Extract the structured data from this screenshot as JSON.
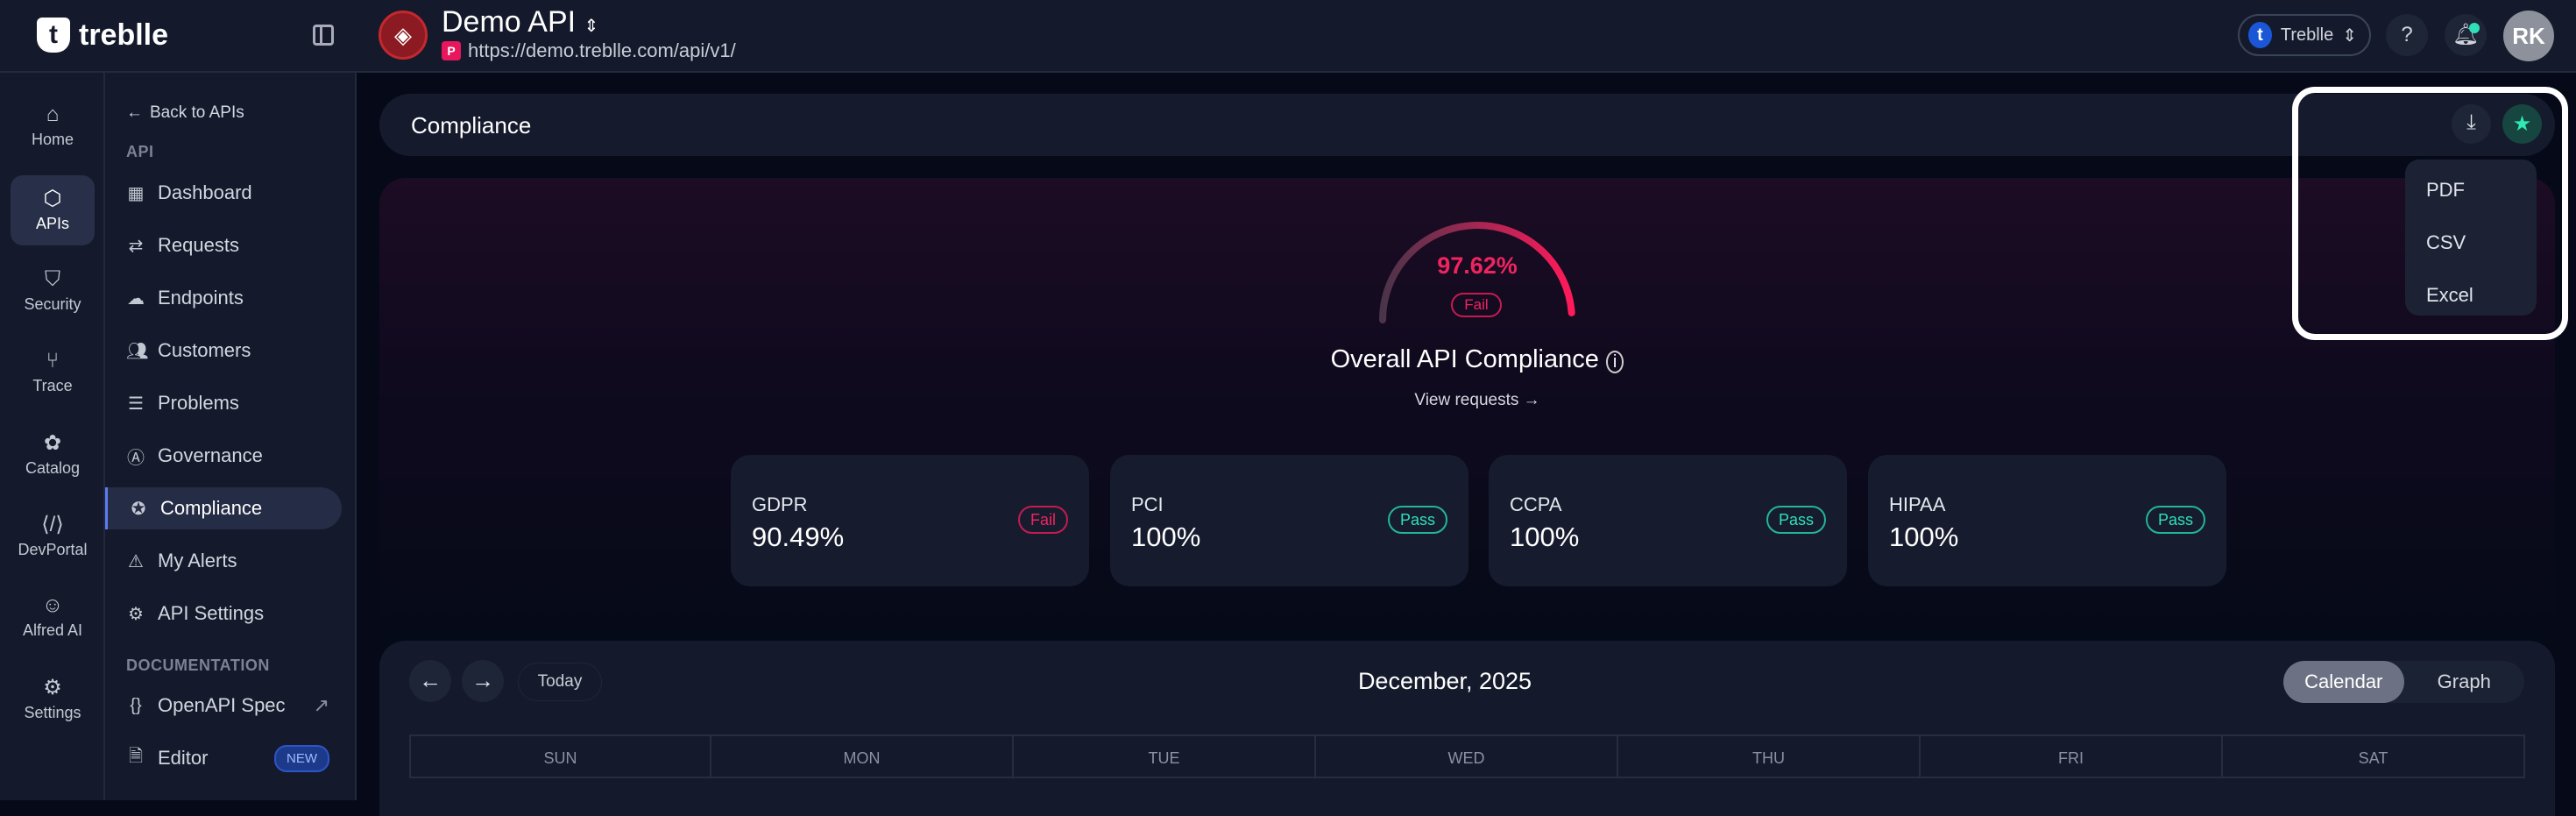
{
  "brand": {
    "name": "treblle"
  },
  "api": {
    "name": "Demo API",
    "url": "https://demo.treblle.com/api/v1/",
    "badge": "P"
  },
  "topbar": {
    "org": "Treblle",
    "help": "?",
    "avatar": "RK"
  },
  "rail": [
    {
      "label": "Home",
      "icon": "home-icon"
    },
    {
      "label": "APIs",
      "icon": "cube-icon"
    },
    {
      "label": "Security",
      "icon": "shield-icon"
    },
    {
      "label": "Trace",
      "icon": "git-icon"
    },
    {
      "label": "Catalog",
      "icon": "catalog-icon"
    },
    {
      "label": "DevPortal",
      "icon": "code-icon"
    },
    {
      "label": "Alfred AI",
      "icon": "robot-icon"
    },
    {
      "label": "Settings",
      "icon": "gear-icon"
    }
  ],
  "sidebar": {
    "back": "Back to APIs",
    "api_section": "API",
    "doc_section": "DOCUMENTATION",
    "items": [
      {
        "label": "Dashboard"
      },
      {
        "label": "Requests"
      },
      {
        "label": "Endpoints"
      },
      {
        "label": "Customers"
      },
      {
        "label": "Problems"
      },
      {
        "label": "Governance"
      },
      {
        "label": "Compliance"
      },
      {
        "label": "My Alerts"
      },
      {
        "label": "API Settings"
      }
    ],
    "docs": [
      {
        "label": "OpenAPI Spec"
      },
      {
        "label": "Editor",
        "badge": "NEW"
      }
    ]
  },
  "page": {
    "title": "Compliance"
  },
  "export_menu": {
    "items": [
      "PDF",
      "CSV",
      "Excel"
    ]
  },
  "overall": {
    "value": "97.62%",
    "percent": 97.62,
    "status": "Fail",
    "title": "Overall API Compliance",
    "link": "View requests →"
  },
  "standards": [
    {
      "name": "GDPR",
      "value": "90.49%",
      "status": "Fail"
    },
    {
      "name": "PCI",
      "value": "100%",
      "status": "Pass"
    },
    {
      "name": "CCPA",
      "value": "100%",
      "status": "Pass"
    },
    {
      "name": "HIPAA",
      "value": "100%",
      "status": "Pass"
    }
  ],
  "calendar": {
    "today": "Today",
    "month": "December, 2025",
    "views": [
      "Calendar",
      "Graph"
    ],
    "days": [
      "SUN",
      "MON",
      "TUE",
      "WED",
      "THU",
      "FRI",
      "SAT"
    ]
  },
  "colors": {
    "fail": "#f0245f",
    "pass": "#2fe0b8",
    "accent": "#5b7cf5"
  }
}
